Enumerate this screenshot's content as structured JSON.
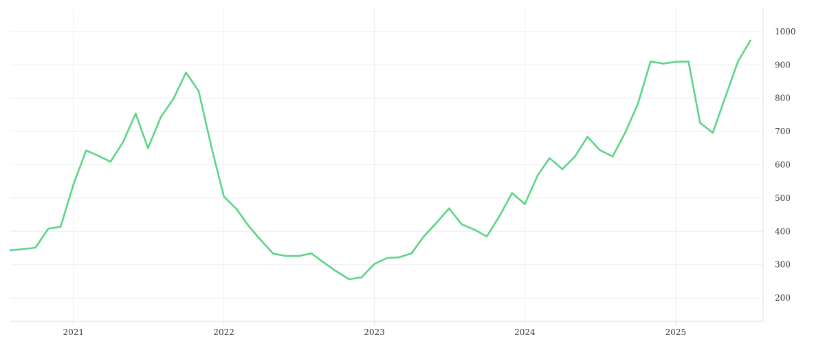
{
  "chart_data": {
    "type": "line",
    "title": "",
    "xlabel": "",
    "ylabel": "",
    "grid": true,
    "legend": "none",
    "y_axis_position": "right",
    "ylim": [
      130,
      1070
    ],
    "xlim": [
      "2020-08-01",
      "2025-08-01"
    ],
    "y_ticks": [
      200,
      300,
      400,
      500,
      600,
      700,
      800,
      900,
      1000
    ],
    "x_ticks": [
      {
        "label": "2021",
        "date": "2021-01-01"
      },
      {
        "label": "2022",
        "date": "2022-01-01"
      },
      {
        "label": "2023",
        "date": "2023-01-01"
      },
      {
        "label": "2024",
        "date": "2024-01-01"
      },
      {
        "label": "2025",
        "date": "2025-01-01"
      }
    ],
    "series": [
      {
        "color": "#5cd486",
        "points": [
          [
            "2020-08-01",
            343
          ],
          [
            "2020-09-01",
            347
          ],
          [
            "2020-10-01",
            351
          ],
          [
            "2020-11-01",
            408
          ],
          [
            "2020-12-01",
            414
          ],
          [
            "2021-01-01",
            540
          ],
          [
            "2021-02-01",
            643
          ],
          [
            "2021-03-01",
            628
          ],
          [
            "2021-04-01",
            609
          ],
          [
            "2021-05-01",
            667
          ],
          [
            "2021-06-01",
            754
          ],
          [
            "2021-07-01",
            650
          ],
          [
            "2021-08-01",
            743
          ],
          [
            "2021-09-01",
            799
          ],
          [
            "2021-10-01",
            877
          ],
          [
            "2021-11-01",
            821
          ],
          [
            "2021-12-01",
            658
          ],
          [
            "2022-01-01",
            505
          ],
          [
            "2022-02-01",
            467
          ],
          [
            "2022-03-01",
            418
          ],
          [
            "2022-04-01",
            373
          ],
          [
            "2022-05-01",
            333
          ],
          [
            "2022-06-01",
            326
          ],
          [
            "2022-07-01",
            326
          ],
          [
            "2022-08-01",
            334
          ],
          [
            "2022-09-01",
            306
          ],
          [
            "2022-10-01",
            280
          ],
          [
            "2022-11-01",
            256
          ],
          [
            "2022-12-01",
            262
          ],
          [
            "2023-01-01",
            302
          ],
          [
            "2023-02-01",
            320
          ],
          [
            "2023-03-01",
            322
          ],
          [
            "2023-04-01",
            334
          ],
          [
            "2023-05-01",
            385
          ],
          [
            "2023-06-01",
            426
          ],
          [
            "2023-07-01",
            469
          ],
          [
            "2023-08-01",
            421
          ],
          [
            "2023-09-01",
            405
          ],
          [
            "2023-10-01",
            385
          ],
          [
            "2023-11-01",
            447
          ],
          [
            "2023-12-01",
            515
          ],
          [
            "2024-01-01",
            482
          ],
          [
            "2024-02-01",
            568
          ],
          [
            "2024-03-01",
            620
          ],
          [
            "2024-04-01",
            587
          ],
          [
            "2024-05-01",
            624
          ],
          [
            "2024-06-01",
            684
          ],
          [
            "2024-07-01",
            644
          ],
          [
            "2024-08-01",
            625
          ],
          [
            "2024-09-01",
            698
          ],
          [
            "2024-10-01",
            782
          ],
          [
            "2024-11-01",
            910
          ],
          [
            "2024-12-01",
            904
          ],
          [
            "2025-01-01",
            909
          ],
          [
            "2025-02-01",
            910
          ],
          [
            "2025-03-01",
            726
          ],
          [
            "2025-04-01",
            696
          ],
          [
            "2025-05-01",
            802
          ],
          [
            "2025-06-01",
            910
          ],
          [
            "2025-07-01",
            973
          ]
        ]
      }
    ]
  }
}
